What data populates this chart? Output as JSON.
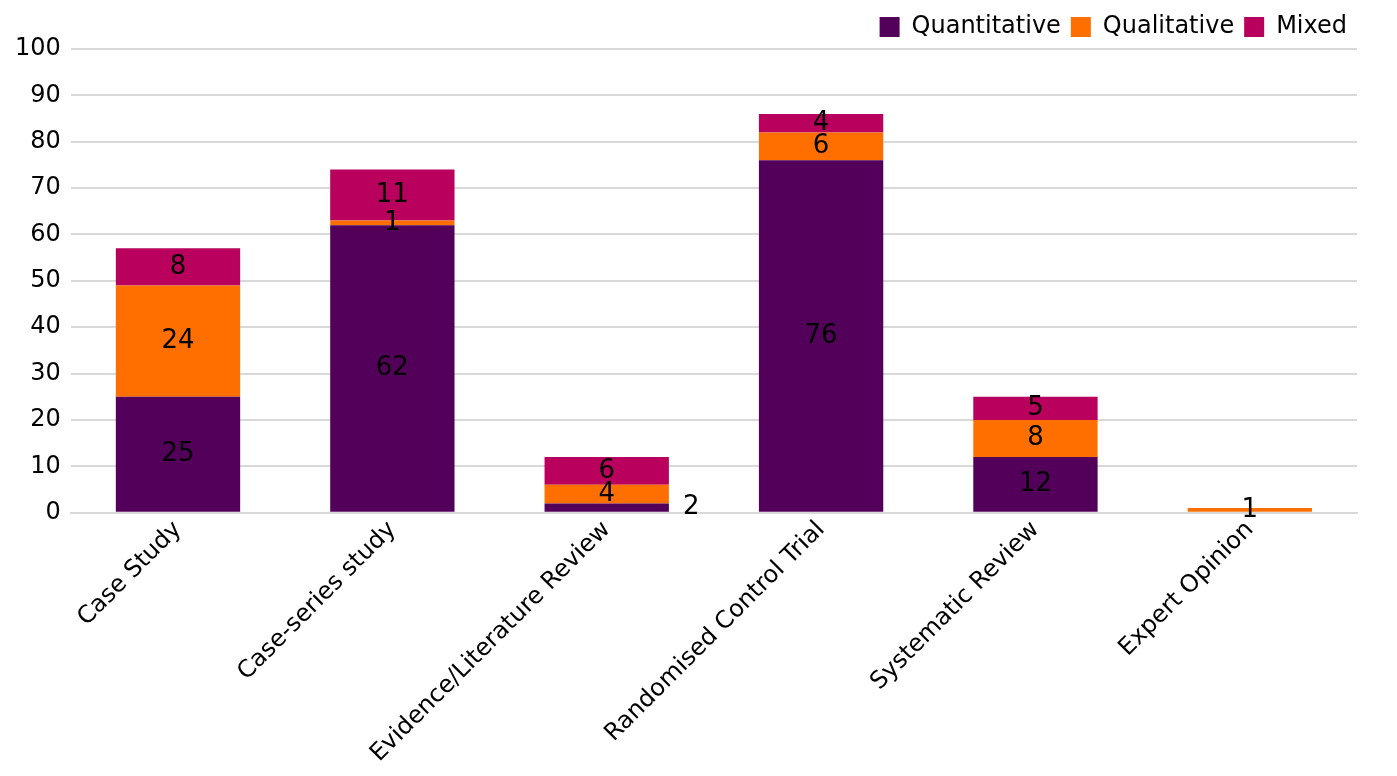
{
  "chart_data": {
    "type": "bar",
    "stacked": true,
    "categories": [
      "Case Study",
      "Case-series study",
      "Evidence/Literature Review",
      "Randomised Control Trial",
      "Systematic Review",
      "Expert Opinion"
    ],
    "series": [
      {
        "name": "Quantitative",
        "color": "#52005a",
        "values": [
          25,
          62,
          2,
          76,
          12,
          null
        ],
        "value_labels": [
          "25",
          "62",
          "2",
          "76",
          "12",
          null
        ]
      },
      {
        "name": "Qualitative",
        "color": "#ff6f00",
        "values": [
          24,
          1,
          4,
          6,
          8,
          1
        ],
        "value_labels": [
          "24",
          "1",
          "4",
          "6",
          "8",
          "1"
        ]
      },
      {
        "name": "Mixed",
        "color": "#b9005c",
        "values": [
          8,
          11,
          6,
          4,
          5,
          null
        ],
        "value_labels": [
          "8",
          "11",
          "6",
          "4",
          "5",
          null
        ]
      }
    ],
    "ylim": [
      0,
      100
    ],
    "yticks": [
      0,
      10,
      20,
      30,
      40,
      50,
      60,
      70,
      80,
      90,
      100
    ],
    "grid": "y",
    "legend": "top right"
  }
}
